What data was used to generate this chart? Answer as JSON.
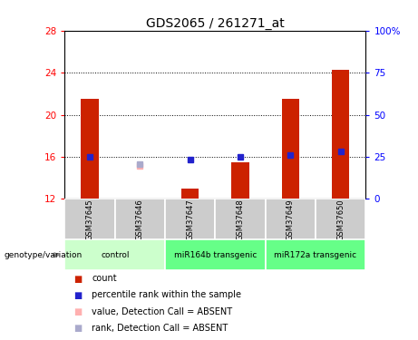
{
  "title": "GDS2065 / 261271_at",
  "samples": [
    "GSM37645",
    "GSM37646",
    "GSM37647",
    "GSM37648",
    "GSM37649",
    "GSM37650"
  ],
  "red_bars": [
    21.5,
    null,
    13.0,
    15.5,
    21.5,
    24.3
  ],
  "blue_dots": [
    16.0,
    null,
    15.7,
    16.0,
    16.2,
    16.5
  ],
  "pink_dots": [
    null,
    15.1,
    null,
    null,
    null,
    null
  ],
  "lavender_dots": [
    null,
    15.3,
    null,
    null,
    null,
    null
  ],
  "ylim": [
    12,
    28
  ],
  "yticks_left": [
    12,
    16,
    20,
    24,
    28
  ],
  "yticks_right_pct": [
    0,
    25,
    50,
    75,
    100
  ],
  "bar_base": 12,
  "bar_width": 0.35,
  "red_color": "#CC2200",
  "blue_color": "#2222CC",
  "pink_color": "#FFB0B0",
  "lavender_color": "#AAAACC",
  "legend_items": [
    {
      "label": "count",
      "color": "#CC2200"
    },
    {
      "label": "percentile rank within the sample",
      "color": "#2222CC"
    },
    {
      "label": "value, Detection Call = ABSENT",
      "color": "#FFB0B0"
    },
    {
      "label": "rank, Detection Call = ABSENT",
      "color": "#AAAACC"
    }
  ],
  "genotype_label": "genotype/variation",
  "sample_box_color": "#CCCCCC",
  "group_info": [
    {
      "label": "control",
      "start": 0,
      "end": 2,
      "color": "#CCFFCC"
    },
    {
      "label": "miR164b transgenic",
      "start": 2,
      "end": 4,
      "color": "#66FF88"
    },
    {
      "label": "miR172a transgenic",
      "start": 4,
      "end": 6,
      "color": "#66FF88"
    }
  ],
  "hlines": [
    16,
    20,
    24
  ],
  "title_fontsize": 10,
  "tick_fontsize": 7.5,
  "sample_fontsize": 6,
  "group_fontsize": 6.5,
  "legend_fontsize": 7
}
